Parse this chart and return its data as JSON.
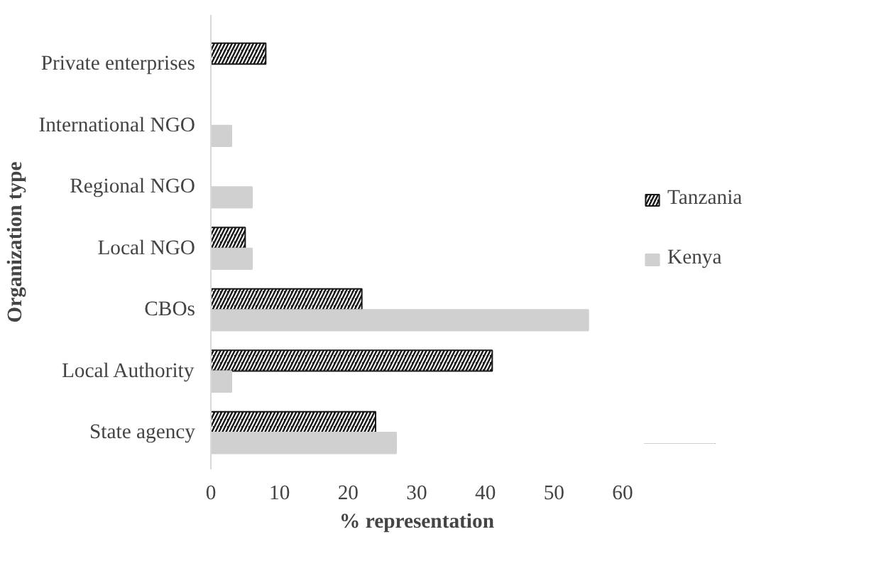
{
  "chart_data": {
    "type": "bar",
    "orientation": "horizontal",
    "xlabel": "% representation",
    "ylabel": "Organization type",
    "categories": [
      "Private enterprises",
      "International NGO",
      "Regional NGO",
      "Local NGO",
      "CBOs",
      "Local Authority",
      "State agency"
    ],
    "series": [
      {
        "name": "Tanzania",
        "color": "#1a1a1a",
        "values": [
          8,
          null,
          null,
          5,
          22,
          41,
          24
        ]
      },
      {
        "name": "Kenya",
        "color": "#d0d0d0",
        "values": [
          null,
          3,
          6,
          6,
          55,
          3,
          27
        ]
      }
    ],
    "xlim": [
      0,
      60
    ],
    "xticks": [
      0,
      10,
      20,
      30,
      40,
      50,
      60
    ],
    "grid": false,
    "legend": "right"
  }
}
